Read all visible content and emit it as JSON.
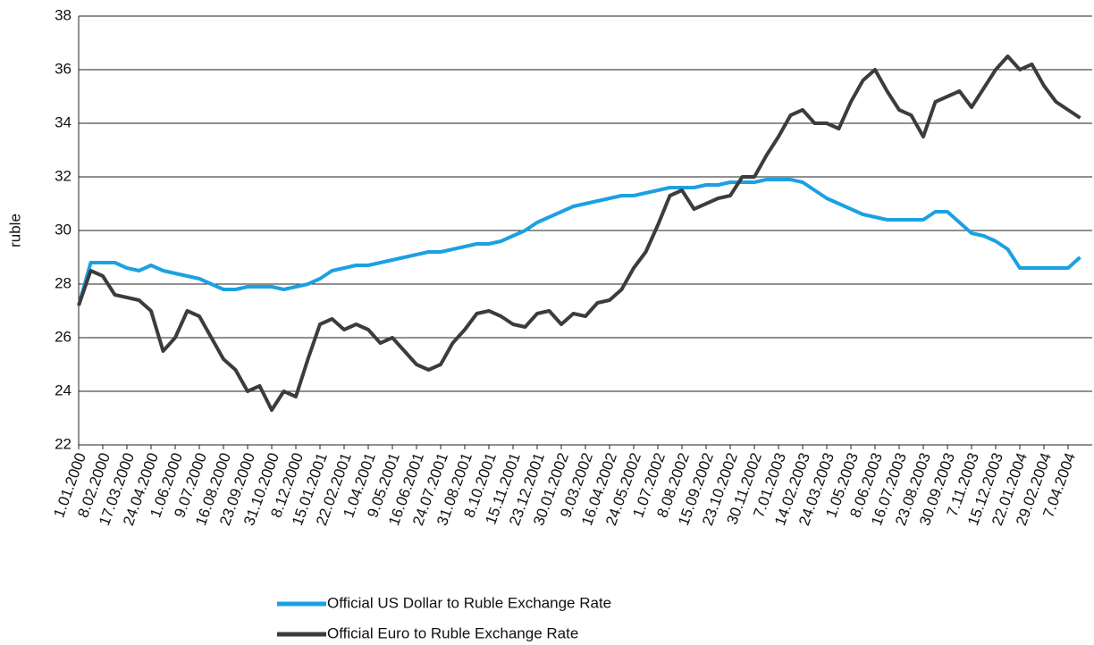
{
  "chart_data": {
    "type": "line",
    "y_label": "ruble",
    "categories": [
      "1.01.2000",
      null,
      "8.02.2000",
      null,
      "17.03.2000",
      null,
      "24.04.2000",
      null,
      "1.06.2000",
      null,
      "9.07.2000",
      null,
      "16.08.2000",
      null,
      "23.09.2000",
      null,
      "31.10.2000",
      null,
      "8.12.2000",
      null,
      "15.01.2001",
      null,
      "22.02.2001",
      null,
      "1.04.2001",
      null,
      "9.05.2001",
      null,
      "16.06.2001",
      null,
      "24.07.2001",
      null,
      "31.08.2001",
      null,
      "8.10.2001",
      null,
      "15.11.2001",
      null,
      "23.12.2001",
      null,
      "30.01.2002",
      null,
      "9.03.2002",
      null,
      "16.04.2002",
      null,
      "24.05.2002",
      null,
      "1.07.2002",
      null,
      "8.08.2002",
      null,
      "15.09.2002",
      null,
      "23.10.2002",
      null,
      "30.11.2002",
      null,
      "7.01.2003",
      null,
      "14.02.2003",
      null,
      "24.03.2003",
      null,
      "1.05.2003",
      null,
      "8.06.2003",
      null,
      "16.07.2003",
      null,
      "23.08.2003",
      null,
      "30.09.2003",
      null,
      "7.11.2003",
      null,
      "15.12.2003",
      null,
      "22.01.2004",
      null,
      "29.02.2004",
      null,
      "7.04.2004",
      null
    ],
    "series": [
      {
        "name": "Official US Dollar to Ruble Exchange Rate",
        "color": "#1ba1e2",
        "values": [
          27.2,
          28.8,
          28.8,
          28.8,
          28.6,
          28.5,
          28.7,
          28.5,
          28.4,
          28.3,
          28.2,
          28.0,
          27.8,
          27.8,
          27.9,
          27.9,
          27.9,
          27.8,
          27.9,
          28.0,
          28.2,
          28.5,
          28.6,
          28.7,
          28.7,
          28.8,
          28.9,
          29.0,
          29.1,
          29.2,
          29.2,
          29.3,
          29.4,
          29.5,
          29.5,
          29.6,
          29.8,
          30.0,
          30.3,
          30.5,
          30.7,
          30.9,
          31.0,
          31.1,
          31.2,
          31.3,
          31.3,
          31.4,
          31.5,
          31.6,
          31.6,
          31.6,
          31.7,
          31.7,
          31.8,
          31.8,
          31.8,
          31.9,
          31.9,
          31.9,
          31.8,
          31.5,
          31.2,
          31.0,
          30.8,
          30.6,
          30.5,
          30.4,
          30.4,
          30.4,
          30.4,
          30.7,
          30.7,
          30.3,
          29.9,
          29.8,
          29.6,
          29.3,
          28.6,
          28.6,
          28.6,
          28.6,
          28.6,
          29.0
        ]
      },
      {
        "name": "Official Euro to Ruble Exchange Rate",
        "color": "#3c3c3c",
        "values": [
          27.2,
          28.5,
          28.3,
          27.6,
          27.5,
          27.4,
          27.0,
          25.5,
          26.0,
          27.0,
          26.8,
          26.0,
          25.2,
          24.8,
          24.0,
          24.2,
          23.3,
          24.0,
          23.8,
          25.2,
          26.5,
          26.7,
          26.3,
          26.5,
          26.3,
          25.8,
          26.0,
          25.5,
          25.0,
          24.8,
          25.0,
          25.8,
          26.3,
          26.9,
          27.0,
          26.8,
          26.5,
          26.4,
          26.9,
          27.0,
          26.5,
          26.9,
          26.8,
          27.3,
          27.4,
          27.8,
          28.6,
          29.2,
          30.2,
          31.3,
          31.5,
          30.8,
          31.0,
          31.2,
          31.3,
          32.0,
          32.0,
          32.8,
          33.5,
          34.3,
          34.5,
          34.0,
          34.0,
          33.8,
          34.8,
          35.6,
          36.0,
          35.2,
          34.5,
          34.3,
          33.5,
          34.8,
          35.0,
          35.2,
          34.6,
          35.3,
          36.0,
          36.5,
          36.0,
          36.2,
          35.4,
          34.8,
          34.5,
          34.2
        ]
      }
    ],
    "ylim": [
      22,
      38
    ],
    "yticks": [
      22,
      24,
      26,
      28,
      30,
      32,
      34,
      36,
      38
    ],
    "grid": true,
    "legend": "bottom"
  }
}
